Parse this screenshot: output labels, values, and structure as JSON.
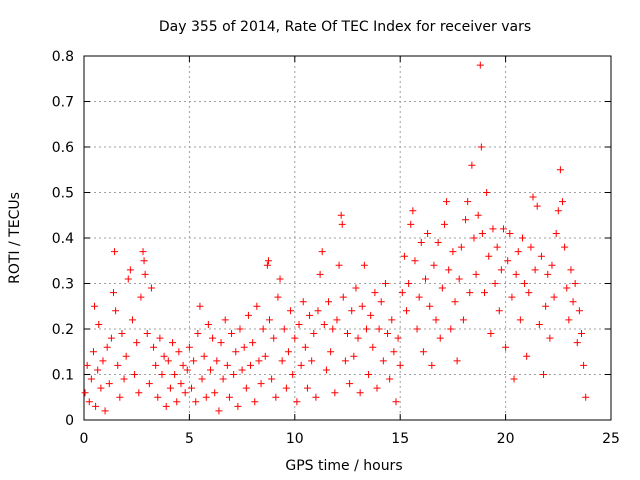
{
  "chart_data": {
    "type": "scatter",
    "title": "Day 355 of 2014, Rate Of TEC Index for receiver vars",
    "xlabel": "GPS time / hours",
    "ylabel": "ROTI / TECUs",
    "xlim": [
      0,
      25
    ],
    "ylim": [
      0,
      0.8
    ],
    "xticks": [
      0,
      5,
      10,
      15,
      20,
      25
    ],
    "yticks": [
      0,
      0.1,
      0.2,
      0.3,
      0.4,
      0.5,
      0.6,
      0.7,
      0.8
    ],
    "xtick_labels": [
      "0",
      "5",
      "10",
      "15",
      "20",
      "25"
    ],
    "ytick_labels": [
      "0",
      "0.1",
      "0.2",
      "0.3",
      "0.4",
      "0.5",
      "0.6",
      "0.7",
      "0.8"
    ],
    "grid": true,
    "marker": "+",
    "color": "#ff0000",
    "series": [
      {
        "name": "ROTI",
        "points": [
          [
            0.05,
            0.06
          ],
          [
            0.15,
            0.12
          ],
          [
            0.25,
            0.04
          ],
          [
            0.35,
            0.09
          ],
          [
            0.45,
            0.15
          ],
          [
            0.5,
            0.25
          ],
          [
            0.55,
            0.03
          ],
          [
            0.65,
            0.11
          ],
          [
            0.7,
            0.21
          ],
          [
            0.8,
            0.07
          ],
          [
            0.9,
            0.13
          ],
          [
            1.0,
            0.02
          ],
          [
            1.1,
            0.16
          ],
          [
            1.2,
            0.08
          ],
          [
            1.3,
            0.18
          ],
          [
            1.4,
            0.28
          ],
          [
            1.45,
            0.37
          ],
          [
            1.5,
            0.24
          ],
          [
            1.6,
            0.12
          ],
          [
            1.7,
            0.05
          ],
          [
            1.8,
            0.19
          ],
          [
            1.9,
            0.09
          ],
          [
            2.0,
            0.14
          ],
          [
            2.1,
            0.31
          ],
          [
            2.2,
            0.33
          ],
          [
            2.3,
            0.22
          ],
          [
            2.4,
            0.1
          ],
          [
            2.5,
            0.17
          ],
          [
            2.6,
            0.06
          ],
          [
            2.7,
            0.27
          ],
          [
            2.8,
            0.37
          ],
          [
            2.85,
            0.35
          ],
          [
            2.9,
            0.32
          ],
          [
            3.0,
            0.19
          ],
          [
            3.1,
            0.08
          ],
          [
            3.2,
            0.29
          ],
          [
            3.3,
            0.16
          ],
          [
            3.4,
            0.12
          ],
          [
            3.5,
            0.05
          ],
          [
            3.6,
            0.18
          ],
          [
            3.7,
            0.1
          ],
          [
            3.8,
            0.14
          ],
          [
            3.9,
            0.03
          ],
          [
            4.0,
            0.13
          ],
          [
            4.1,
            0.07
          ],
          [
            4.2,
            0.17
          ],
          [
            4.3,
            0.1
          ],
          [
            4.4,
            0.04
          ],
          [
            4.5,
            0.15
          ],
          [
            4.6,
            0.08
          ],
          [
            4.7,
            0.12
          ],
          [
            4.8,
            0.06
          ],
          [
            4.9,
            0.11
          ],
          [
            5.0,
            0.16
          ],
          [
            5.1,
            0.07
          ],
          [
            5.2,
            0.13
          ],
          [
            5.3,
            0.04
          ],
          [
            5.4,
            0.19
          ],
          [
            5.5,
            0.25
          ],
          [
            5.6,
            0.09
          ],
          [
            5.7,
            0.14
          ],
          [
            5.8,
            0.05
          ],
          [
            5.9,
            0.21
          ],
          [
            6.0,
            0.11
          ],
          [
            6.1,
            0.18
          ],
          [
            6.2,
            0.06
          ],
          [
            6.3,
            0.13
          ],
          [
            6.4,
            0.02
          ],
          [
            6.5,
            0.17
          ],
          [
            6.6,
            0.09
          ],
          [
            6.7,
            0.22
          ],
          [
            6.8,
            0.12
          ],
          [
            6.9,
            0.05
          ],
          [
            7.0,
            0.19
          ],
          [
            7.1,
            0.1
          ],
          [
            7.2,
            0.15
          ],
          [
            7.3,
            0.03
          ],
          [
            7.4,
            0.2
          ],
          [
            7.5,
            0.11
          ],
          [
            7.6,
            0.16
          ],
          [
            7.7,
            0.07
          ],
          [
            7.8,
            0.23
          ],
          [
            7.9,
            0.12
          ],
          [
            8.0,
            0.17
          ],
          [
            8.1,
            0.04
          ],
          [
            8.2,
            0.25
          ],
          [
            8.3,
            0.13
          ],
          [
            8.4,
            0.08
          ],
          [
            8.5,
            0.2
          ],
          [
            8.6,
            0.14
          ],
          [
            8.7,
            0.34
          ],
          [
            8.75,
            0.35
          ],
          [
            8.8,
            0.22
          ],
          [
            8.9,
            0.09
          ],
          [
            9.0,
            0.18
          ],
          [
            9.1,
            0.05
          ],
          [
            9.2,
            0.27
          ],
          [
            9.3,
            0.31
          ],
          [
            9.4,
            0.13
          ],
          [
            9.5,
            0.2
          ],
          [
            9.6,
            0.07
          ],
          [
            9.7,
            0.15
          ],
          [
            9.8,
            0.24
          ],
          [
            9.9,
            0.1
          ],
          [
            10.0,
            0.18
          ],
          [
            10.1,
            0.04
          ],
          [
            10.2,
            0.21
          ],
          [
            10.3,
            0.12
          ],
          [
            10.4,
            0.26
          ],
          [
            10.5,
            0.16
          ],
          [
            10.6,
            0.07
          ],
          [
            10.7,
            0.23
          ],
          [
            10.8,
            0.13
          ],
          [
            10.9,
            0.19
          ],
          [
            11.0,
            0.05
          ],
          [
            11.1,
            0.24
          ],
          [
            11.2,
            0.32
          ],
          [
            11.3,
            0.37
          ],
          [
            11.4,
            0.21
          ],
          [
            11.5,
            0.11
          ],
          [
            11.6,
            0.26
          ],
          [
            11.7,
            0.15
          ],
          [
            11.8,
            0.2
          ],
          [
            11.9,
            0.06
          ],
          [
            12.0,
            0.22
          ],
          [
            12.1,
            0.34
          ],
          [
            12.2,
            0.45
          ],
          [
            12.25,
            0.43
          ],
          [
            12.3,
            0.27
          ],
          [
            12.4,
            0.13
          ],
          [
            12.5,
            0.19
          ],
          [
            12.6,
            0.08
          ],
          [
            12.7,
            0.24
          ],
          [
            12.8,
            0.14
          ],
          [
            12.9,
            0.29
          ],
          [
            13.0,
            0.18
          ],
          [
            13.1,
            0.06
          ],
          [
            13.2,
            0.25
          ],
          [
            13.3,
            0.34
          ],
          [
            13.4,
            0.2
          ],
          [
            13.5,
            0.1
          ],
          [
            13.6,
            0.23
          ],
          [
            13.7,
            0.16
          ],
          [
            13.8,
            0.28
          ],
          [
            13.9,
            0.07
          ],
          [
            14.0,
            0.2
          ],
          [
            14.1,
            0.26
          ],
          [
            14.2,
            0.13
          ],
          [
            14.3,
            0.3
          ],
          [
            14.4,
            0.19
          ],
          [
            14.5,
            0.09
          ],
          [
            14.6,
            0.22
          ],
          [
            14.7,
            0.15
          ],
          [
            14.8,
            0.04
          ],
          [
            14.9,
            0.18
          ],
          [
            15.0,
            0.12
          ],
          [
            15.1,
            0.28
          ],
          [
            15.2,
            0.36
          ],
          [
            15.3,
            0.24
          ],
          [
            15.4,
            0.3
          ],
          [
            15.5,
            0.43
          ],
          [
            15.6,
            0.46
          ],
          [
            15.7,
            0.35
          ],
          [
            15.8,
            0.2
          ],
          [
            15.9,
            0.27
          ],
          [
            16.0,
            0.39
          ],
          [
            16.1,
            0.15
          ],
          [
            16.2,
            0.31
          ],
          [
            16.3,
            0.41
          ],
          [
            16.4,
            0.25
          ],
          [
            16.5,
            0.12
          ],
          [
            16.6,
            0.34
          ],
          [
            16.7,
            0.22
          ],
          [
            16.8,
            0.39
          ],
          [
            16.9,
            0.18
          ],
          [
            17.0,
            0.29
          ],
          [
            17.1,
            0.43
          ],
          [
            17.2,
            0.48
          ],
          [
            17.3,
            0.33
          ],
          [
            17.4,
            0.2
          ],
          [
            17.5,
            0.37
          ],
          [
            17.6,
            0.26
          ],
          [
            17.7,
            0.13
          ],
          [
            17.8,
            0.31
          ],
          [
            17.9,
            0.38
          ],
          [
            18.0,
            0.22
          ],
          [
            18.1,
            0.44
          ],
          [
            18.2,
            0.48
          ],
          [
            18.3,
            0.28
          ],
          [
            18.4,
            0.56
          ],
          [
            18.5,
            0.4
          ],
          [
            18.6,
            0.32
          ],
          [
            18.7,
            0.45
          ],
          [
            18.8,
            0.78
          ],
          [
            18.85,
            0.6
          ],
          [
            18.9,
            0.41
          ],
          [
            19.0,
            0.28
          ],
          [
            19.1,
            0.5
          ],
          [
            19.2,
            0.36
          ],
          [
            19.3,
            0.19
          ],
          [
            19.4,
            0.42
          ],
          [
            19.5,
            0.3
          ],
          [
            19.6,
            0.38
          ],
          [
            19.7,
            0.24
          ],
          [
            19.8,
            0.33
          ],
          [
            19.9,
            0.42
          ],
          [
            20.0,
            0.16
          ],
          [
            20.1,
            0.35
          ],
          [
            20.2,
            0.41
          ],
          [
            20.3,
            0.27
          ],
          [
            20.4,
            0.09
          ],
          [
            20.5,
            0.32
          ],
          [
            20.6,
            0.37
          ],
          [
            20.7,
            0.22
          ],
          [
            20.8,
            0.4
          ],
          [
            20.9,
            0.3
          ],
          [
            21.0,
            0.14
          ],
          [
            21.1,
            0.28
          ],
          [
            21.2,
            0.38
          ],
          [
            21.3,
            0.49
          ],
          [
            21.4,
            0.33
          ],
          [
            21.5,
            0.47
          ],
          [
            21.6,
            0.21
          ],
          [
            21.7,
            0.36
          ],
          [
            21.8,
            0.1
          ],
          [
            21.9,
            0.25
          ],
          [
            22.0,
            0.32
          ],
          [
            22.1,
            0.18
          ],
          [
            22.2,
            0.34
          ],
          [
            22.3,
            0.27
          ],
          [
            22.4,
            0.41
          ],
          [
            22.5,
            0.46
          ],
          [
            22.6,
            0.55
          ],
          [
            22.7,
            0.48
          ],
          [
            22.8,
            0.38
          ],
          [
            22.9,
            0.29
          ],
          [
            23.0,
            0.22
          ],
          [
            23.1,
            0.33
          ],
          [
            23.2,
            0.26
          ],
          [
            23.3,
            0.3
          ],
          [
            23.4,
            0.17
          ],
          [
            23.5,
            0.24
          ],
          [
            23.6,
            0.19
          ],
          [
            23.7,
            0.12
          ],
          [
            23.8,
            0.05
          ]
        ]
      }
    ]
  }
}
